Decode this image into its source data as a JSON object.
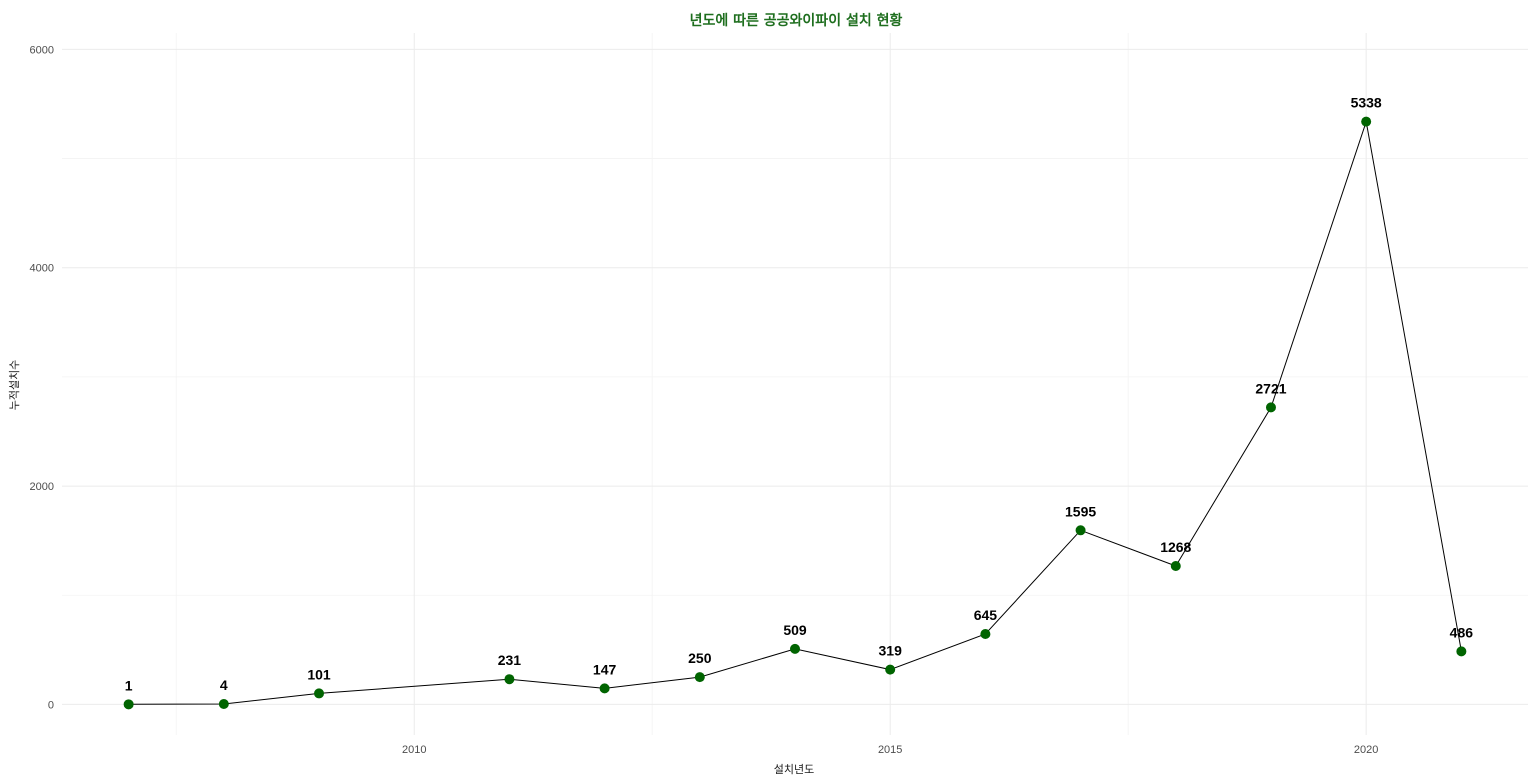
{
  "chart_data": {
    "type": "line",
    "title": "년도에 따른 공공와이파이 설치 현황",
    "xlabel": "설치년도",
    "ylabel": "누적설치수",
    "x": [
      2007,
      2008,
      2009,
      2011,
      2012,
      2013,
      2014,
      2015,
      2016,
      2017,
      2018,
      2019,
      2020,
      2021
    ],
    "series": [
      {
        "values": [
          1,
          4,
          101,
          231,
          147,
          250,
          509,
          319,
          645,
          1595,
          1268,
          2721,
          5338,
          486
        ]
      }
    ],
    "data_labels": [
      "1",
      "4",
      "101",
      "231",
      "147",
      "250",
      "509",
      "319",
      "645",
      "1595",
      "1268",
      "2721",
      "5338",
      "486"
    ],
    "x_ticks": [
      2010,
      2015,
      2020
    ],
    "x_tick_labels": [
      "2010",
      "2015",
      "2020"
    ],
    "y_ticks": [
      0,
      2000,
      4000,
      6000
    ],
    "y_tick_labels": [
      "0",
      "2000",
      "4000",
      "6000"
    ],
    "xlim": [
      2006.3,
      2021.7
    ],
    "ylim": [
      -280,
      6150
    ],
    "grid": true,
    "line_color": "#000000",
    "point_color": "#006400",
    "title_color": "#1e6e1e"
  }
}
